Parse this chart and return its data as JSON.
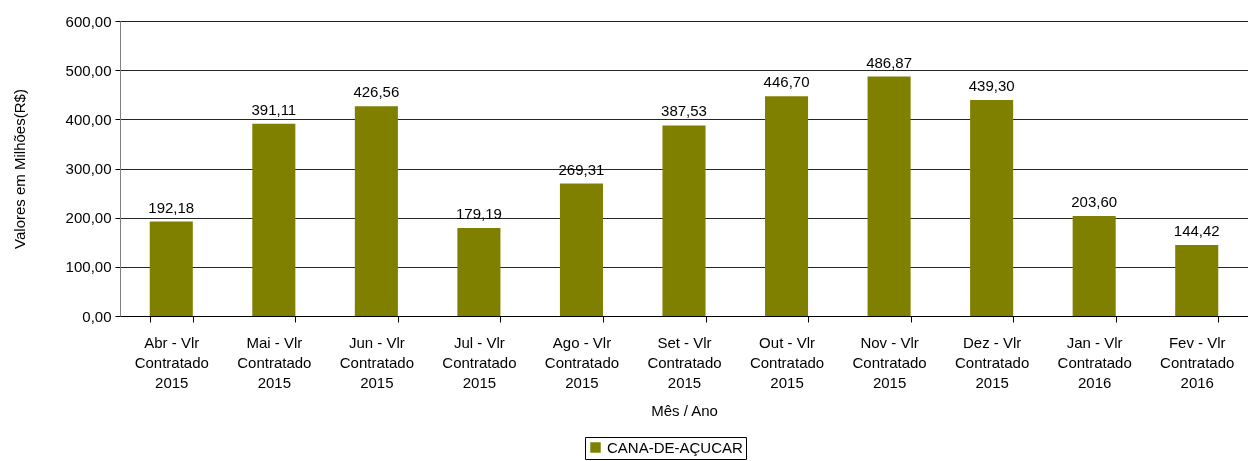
{
  "chart_data": {
    "type": "bar",
    "xlabel": "Mês / Ano",
    "ylabel": "Valores em Milhões(R$)",
    "categories": [
      "Abr - Vlr Contratado 2015",
      "Mai - Vlr Contratado 2015",
      "Jun - Vlr Contratado 2015",
      "Jul - Vlr Contratado 2015",
      "Ago - Vlr Contratado 2015",
      "Set - Vlr Contratado 2015",
      "Out - Vlr Contratado 2015",
      "Nov - Vlr Contratado 2015",
      "Dez - Vlr Contratado 2015",
      "Jan - Vlr Contratado 2016",
      "Fev - Vlr Contratado 2016"
    ],
    "series": [
      {
        "name": "CANA-DE-AÇUCAR",
        "color": "#808000",
        "values": [
          192.18,
          391.11,
          426.56,
          179.19,
          269.31,
          387.53,
          446.7,
          486.87,
          439.3,
          203.6,
          144.42
        ],
        "value_labels": [
          "192,18",
          "391,11",
          "426,56",
          "179,19",
          "269,31",
          "387,53",
          "446,70",
          "486,87",
          "439,30",
          "203,60",
          "144,42"
        ]
      }
    ],
    "ylim": [
      0,
      600
    ],
    "yticks": [
      {
        "value": 0,
        "label": "0,00"
      },
      {
        "value": 100,
        "label": "100,00"
      },
      {
        "value": 200,
        "label": "200,00"
      },
      {
        "value": 300,
        "label": "300,00"
      },
      {
        "value": 400,
        "label": "400,00"
      },
      {
        "value": 500,
        "label": "500,00"
      },
      {
        "value": 600,
        "label": "600,00"
      }
    ],
    "grid": "y",
    "legend": "bottom"
  }
}
